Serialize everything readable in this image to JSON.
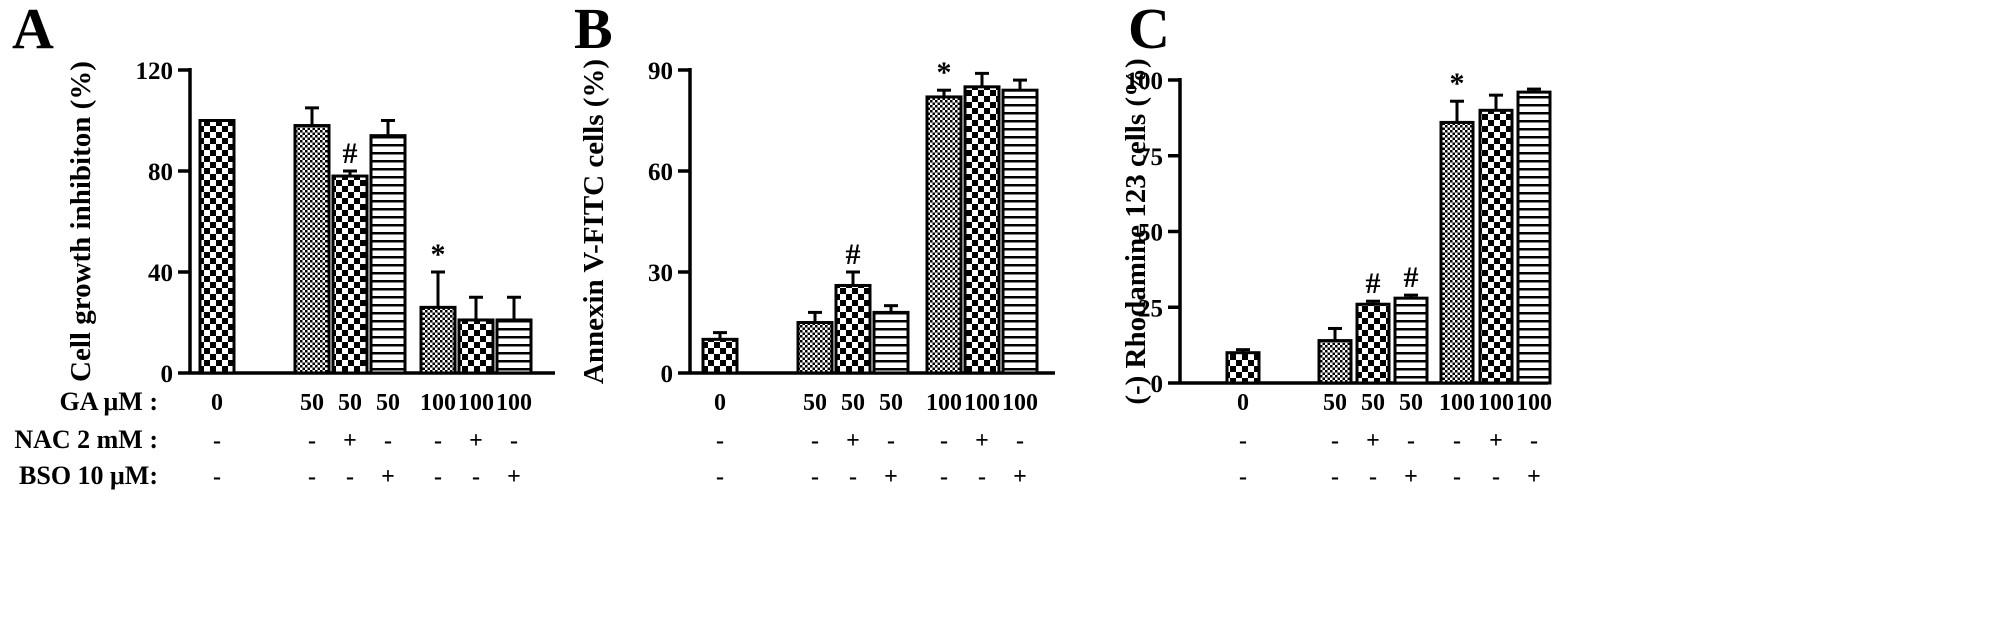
{
  "row_labels": [
    "GA μM :",
    "NAC 2 mM :",
    "BSO 10 μM:"
  ],
  "chart_data": [
    {
      "panel": "A",
      "type": "bar",
      "ylabel": "Cell growth inhibiton (%)",
      "ylim": [
        0,
        120
      ],
      "yticks": [
        0,
        40,
        80,
        120
      ],
      "groups": [
        [
          0
        ],
        [
          1,
          2,
          3
        ],
        [
          4,
          5,
          6
        ]
      ],
      "bars": [
        {
          "ga": "0",
          "nac": "-",
          "bso": "-",
          "value": 100,
          "error": 0,
          "pattern": "checker",
          "annotation": ""
        },
        {
          "ga": "50",
          "nac": "-",
          "bso": "-",
          "value": 98,
          "error": 7,
          "pattern": "fine",
          "annotation": ""
        },
        {
          "ga": "50",
          "nac": "+",
          "bso": "-",
          "value": 78,
          "error": 2,
          "pattern": "checker",
          "annotation": "#"
        },
        {
          "ga": "50",
          "nac": "-",
          "bso": "+",
          "value": 94,
          "error": 6,
          "pattern": "hstripe",
          "annotation": ""
        },
        {
          "ga": "100",
          "nac": "-",
          "bso": "-",
          "value": 26,
          "error": 14,
          "pattern": "fine",
          "annotation": "*"
        },
        {
          "ga": "100",
          "nac": "+",
          "bso": "-",
          "value": 21,
          "error": 9,
          "pattern": "checker",
          "annotation": ""
        },
        {
          "ga": "100",
          "nac": "-",
          "bso": "+",
          "value": 21,
          "error": 9,
          "pattern": "hstripe",
          "annotation": ""
        }
      ]
    },
    {
      "panel": "B",
      "type": "bar",
      "ylabel": "Annexin V-FITC cells (%)",
      "ylim": [
        0,
        90
      ],
      "yticks": [
        0,
        30,
        60,
        90
      ],
      "groups": [
        [
          0
        ],
        [
          1,
          2,
          3
        ],
        [
          4,
          5,
          6
        ]
      ],
      "bars": [
        {
          "ga": "0",
          "nac": "-",
          "bso": "-",
          "value": 10,
          "error": 2,
          "pattern": "checker",
          "annotation": ""
        },
        {
          "ga": "50",
          "nac": "-",
          "bso": "-",
          "value": 15,
          "error": 3,
          "pattern": "fine",
          "annotation": ""
        },
        {
          "ga": "50",
          "nac": "+",
          "bso": "-",
          "value": 26,
          "error": 4,
          "pattern": "checker",
          "annotation": "#"
        },
        {
          "ga": "50",
          "nac": "-",
          "bso": "+",
          "value": 18,
          "error": 2,
          "pattern": "hstripe",
          "annotation": ""
        },
        {
          "ga": "100",
          "nac": "-",
          "bso": "-",
          "value": 82,
          "error": 2,
          "pattern": "fine",
          "annotation": "*"
        },
        {
          "ga": "100",
          "nac": "+",
          "bso": "-",
          "value": 85,
          "error": 4,
          "pattern": "checker",
          "annotation": ""
        },
        {
          "ga": "100",
          "nac": "-",
          "bso": "+",
          "value": 84,
          "error": 3,
          "pattern": "hstripe",
          "annotation": ""
        }
      ]
    },
    {
      "panel": "C",
      "type": "bar",
      "ylabel": "(-) Rhodamine 123 cells (%)",
      "ylim": [
        0,
        100
      ],
      "yticks": [
        0,
        25,
        50,
        75,
        100
      ],
      "groups": [
        [
          0
        ],
        [
          1,
          2,
          3
        ],
        [
          4,
          5,
          6
        ]
      ],
      "bars": [
        {
          "ga": "0",
          "nac": "-",
          "bso": "-",
          "value": 10,
          "error": 1,
          "pattern": "checker",
          "annotation": ""
        },
        {
          "ga": "50",
          "nac": "-",
          "bso": "-",
          "value": 14,
          "error": 4,
          "pattern": "fine",
          "annotation": ""
        },
        {
          "ga": "50",
          "nac": "+",
          "bso": "-",
          "value": 26,
          "error": 1,
          "pattern": "checker",
          "annotation": "#"
        },
        {
          "ga": "50",
          "nac": "-",
          "bso": "+",
          "value": 28,
          "error": 1,
          "pattern": "hstripe",
          "annotation": "#"
        },
        {
          "ga": "100",
          "nac": "-",
          "bso": "-",
          "value": 86,
          "error": 7,
          "pattern": "fine",
          "annotation": "*"
        },
        {
          "ga": "100",
          "nac": "+",
          "bso": "-",
          "value": 90,
          "error": 5,
          "pattern": "checker",
          "annotation": ""
        },
        {
          "ga": "100",
          "nac": "-",
          "bso": "+",
          "value": 96,
          "error": 1,
          "pattern": "hstripe",
          "annotation": ""
        }
      ]
    }
  ]
}
